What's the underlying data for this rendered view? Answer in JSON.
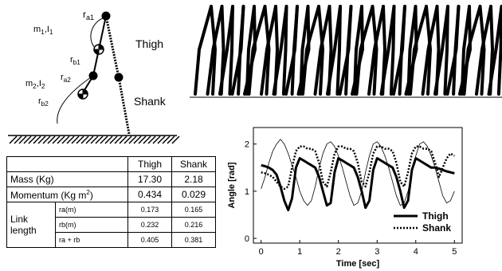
{
  "diagram": {
    "labels": [
      {
        "text": "r",
        "sub": "a1"
      },
      {
        "text": "m",
        "sub": "1",
        "text2": ",I",
        "sub2": "1"
      },
      {
        "text": "Thigh"
      },
      {
        "text": "r",
        "sub": "b1"
      },
      {
        "text": "r",
        "sub": "a2"
      },
      {
        "text": "m",
        "sub": "2",
        "text2": ",I",
        "sub2": "2"
      },
      {
        "text": "r",
        "sub": "b2"
      },
      {
        "text": "Shank"
      }
    ]
  },
  "table": {
    "header": [
      "Thigh",
      "Shank"
    ],
    "rows": [
      {
        "label": "Mass (Kg)",
        "values": [
          "17.30",
          "2.18"
        ]
      },
      {
        "label": [
          "Momentum (Kg m",
          "2",
          ")"
        ],
        "values": [
          "0.434",
          "0.029"
        ]
      }
    ],
    "group": {
      "label": [
        "Link",
        "length"
      ],
      "rows": [
        {
          "label": "ra(m)",
          "values": [
            "0.173",
            "0.165"
          ]
        },
        {
          "label": "rb(m)",
          "values": [
            "0.232",
            "0.216"
          ]
        },
        {
          "label": "ra + rb",
          "values": [
            "0.405",
            "0.381"
          ]
        }
      ]
    }
  },
  "chart_data": {
    "type": "line",
    "x_label": "Time [sec]",
    "y_label": "Angle [rad]",
    "x": [
      0,
      0.1,
      0.2,
      0.3,
      0.4,
      0.5,
      0.6,
      0.7,
      0.8,
      0.9,
      1,
      1.1,
      1.2,
      1.3,
      1.4,
      1.5,
      1.6,
      1.7,
      1.8,
      1.9,
      2,
      2.1,
      2.2,
      2.3,
      2.4,
      2.5,
      2.6,
      2.7,
      2.8,
      2.9,
      3,
      3.1,
      3.2,
      3.3,
      3.4,
      3.5,
      3.6,
      3.7,
      3.8,
      3.9,
      4,
      4.1,
      4.2,
      4.3,
      4.4,
      4.5,
      4.6,
      4.7,
      4.8,
      4.9,
      5
    ],
    "series": [
      {
        "color": "#000000",
        "width": 0.8,
        "dash": "none",
        "values": [
          1.05,
          1.3,
          1.6,
          1.85,
          2.0,
          2.1,
          2.0,
          1.8,
          1.55,
          1.3,
          1.0,
          0.8,
          0.7,
          0.8,
          1.1,
          1.5,
          1.8,
          2.0,
          2.05,
          1.95,
          1.75,
          1.5,
          1.2,
          0.9,
          0.7,
          0.75,
          1.0,
          1.4,
          1.75,
          2.0,
          2.05,
          1.95,
          1.75,
          1.5,
          1.2,
          0.9,
          0.7,
          0.75,
          1.0,
          1.4,
          1.75,
          2.0,
          2.05,
          1.95,
          1.75,
          1.5,
          1.2,
          0.9,
          0.75,
          0.8,
          1.0
        ]
      },
      {
        "name": "Thigh",
        "color": "#000000",
        "width": 3,
        "dash": "none",
        "values": [
          1.55,
          1.53,
          1.5,
          1.45,
          1.35,
          1.1,
          0.8,
          0.6,
          0.85,
          1.5,
          1.7,
          1.65,
          1.6,
          1.55,
          1.5,
          1.3,
          1.0,
          0.7,
          0.75,
          1.4,
          1.7,
          1.65,
          1.6,
          1.55,
          1.5,
          1.3,
          1.0,
          0.65,
          0.8,
          1.45,
          1.7,
          1.65,
          1.6,
          1.55,
          1.5,
          1.3,
          1.0,
          0.65,
          0.8,
          1.45,
          1.7,
          1.65,
          1.6,
          1.55,
          1.5,
          1.5,
          1.48,
          1.45,
          1.42,
          1.4,
          1.38
        ]
      },
      {
        "name": "Shank",
        "color": "#000000",
        "width": 2.5,
        "dash": "2 2",
        "values": [
          1.4,
          1.38,
          1.35,
          1.3,
          1.2,
          1.1,
          1.05,
          1.1,
          1.5,
          1.85,
          1.95,
          1.95,
          1.9,
          1.9,
          1.85,
          1.6,
          1.2,
          1.1,
          1.4,
          1.8,
          1.95,
          1.95,
          1.9,
          1.9,
          1.85,
          1.6,
          1.2,
          1.1,
          1.4,
          1.8,
          1.95,
          1.95,
          1.9,
          1.9,
          1.85,
          1.6,
          1.2,
          1.1,
          1.4,
          1.8,
          1.95,
          1.95,
          1.9,
          1.9,
          1.85,
          1.6,
          1.3,
          1.5,
          1.7,
          1.8,
          1.75
        ]
      }
    ],
    "xlim": [
      -0.2,
      5.2
    ],
    "ylim": [
      -0.1,
      2.35
    ],
    "xticks": [
      0,
      1,
      2,
      3,
      4,
      5
    ],
    "yticks": [
      0,
      1,
      2
    ],
    "legend": "lower right"
  }
}
